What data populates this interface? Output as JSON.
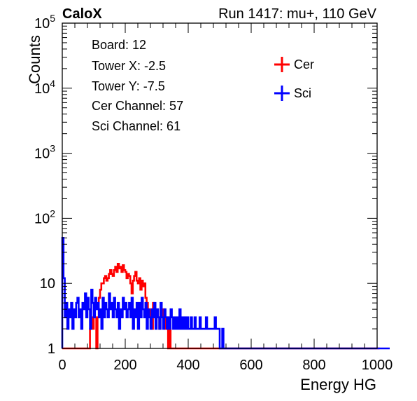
{
  "header": {
    "left_label": "CaloX",
    "right_label": "Run 1417: mu+, 110 GeV"
  },
  "info_box": {
    "lines": [
      "Board: 12",
      "Tower X: -2.5",
      "Tower Y: -7.5",
      "Cer Channel: 57",
      "Sci Channel: 61"
    ]
  },
  "chart_data": {
    "type": "histogram",
    "xlabel": "Energy HG",
    "ylabel": "Counts",
    "xlim": [
      0,
      1000
    ],
    "ylim": [
      1,
      100000
    ],
    "y_scale": "log",
    "x_ticks": [
      "0",
      "200",
      "400",
      "600",
      "800",
      "1000"
    ],
    "y_ticks": [
      {
        "base": "1",
        "exp": "",
        "value": 1
      },
      {
        "base": "10",
        "exp": "",
        "value": 10
      },
      {
        "base": "10",
        "exp": "2",
        "value": 100
      },
      {
        "base": "10",
        "exp": "3",
        "value": 1000
      },
      {
        "base": "10",
        "exp": "4",
        "value": 10000
      },
      {
        "base": "10",
        "exp": "5",
        "value": 100000
      }
    ],
    "legend_position": "top-right",
    "bin_width": 4,
    "series": [
      {
        "name": "Cer",
        "color": "#ff0000",
        "x_start": 0,
        "counts": [
          1,
          1,
          1,
          1,
          1,
          1,
          1,
          1,
          1,
          1,
          1,
          1,
          1,
          1,
          1,
          1,
          1,
          1,
          1,
          1,
          1,
          1,
          2,
          3,
          2,
          3,
          3,
          1,
          3,
          6,
          8,
          10,
          10,
          12,
          13,
          11,
          12,
          14,
          16,
          14,
          13,
          16,
          18,
          15,
          20,
          17,
          18,
          15,
          19,
          16,
          15,
          12,
          14,
          13,
          10,
          7,
          11,
          13,
          15,
          11,
          10,
          12,
          8,
          11,
          9,
          10,
          6,
          5,
          4,
          3,
          4,
          2,
          5,
          4,
          3,
          4,
          3,
          2,
          4,
          3,
          4,
          3,
          2,
          3,
          1,
          2,
          1,
          1,
          1,
          1,
          1,
          1,
          1,
          1,
          1,
          1,
          1,
          1,
          1,
          1,
          1,
          1,
          1,
          1,
          1,
          1,
          1,
          1,
          1,
          1,
          1,
          1,
          1,
          1,
          1,
          1,
          1,
          1,
          1,
          1,
          1,
          1,
          1,
          1,
          1,
          1,
          1,
          1,
          1,
          1,
          1,
          1,
          1,
          1,
          1,
          1,
          1,
          1,
          1,
          1,
          1,
          1,
          1,
          1,
          1,
          1,
          1,
          1,
          1,
          1,
          1,
          1,
          1,
          1,
          1,
          1,
          1,
          1,
          1,
          1,
          1,
          1,
          1,
          1,
          1,
          1,
          1,
          1,
          1,
          1,
          1,
          1,
          1,
          1,
          1,
          1,
          1,
          1,
          1,
          1,
          1,
          1,
          1,
          1,
          1,
          1,
          1,
          1,
          1,
          1,
          1,
          1,
          1,
          1,
          1,
          1,
          1,
          1,
          1,
          1,
          1,
          1,
          1,
          1,
          1,
          1,
          1,
          1,
          1,
          1,
          1,
          1,
          1,
          1,
          1,
          1,
          1,
          1,
          1,
          1,
          1,
          1,
          1,
          1,
          1,
          1,
          1,
          1,
          1,
          1,
          1,
          1,
          1,
          1,
          1,
          1,
          1,
          1,
          1,
          1,
          1,
          1,
          1,
          1,
          1,
          1,
          1,
          1,
          1,
          1,
          1,
          1
        ]
      },
      {
        "name": "Sci",
        "color": "#0000ff",
        "x_start": 0,
        "counts": [
          50,
          12,
          3,
          5,
          2,
          4,
          3,
          5,
          2,
          4,
          3,
          5,
          6,
          3,
          4,
          2,
          5,
          4,
          7,
          3,
          6,
          4,
          2,
          8,
          5,
          3,
          6,
          4,
          5,
          3,
          4,
          2,
          6,
          3,
          5,
          4,
          3,
          7,
          4,
          5,
          3,
          6,
          4,
          3,
          5,
          2,
          4,
          3,
          6,
          4,
          5,
          3,
          4,
          5,
          3,
          6,
          2,
          4,
          3,
          5,
          2,
          5,
          3,
          6,
          4,
          3,
          5,
          2,
          4,
          3,
          2,
          4,
          3,
          5,
          2,
          4,
          3,
          2,
          5,
          3,
          2,
          4,
          3,
          2,
          3,
          2,
          4,
          3,
          2,
          3,
          2,
          3,
          2,
          4,
          2,
          3,
          2,
          3,
          2,
          3,
          2,
          2,
          3,
          2,
          2,
          3,
          2,
          2,
          2,
          3,
          2,
          2,
          2,
          2,
          3,
          2,
          2,
          2,
          2,
          2,
          2,
          3,
          2,
          2,
          2,
          1,
          1,
          2,
          1,
          1,
          1,
          1,
          1,
          1,
          1,
          1,
          1,
          1,
          1,
          1,
          1,
          1,
          1,
          1,
          1,
          1,
          1,
          1,
          1,
          1,
          1,
          1,
          1,
          1,
          1,
          1,
          1,
          1,
          1,
          1,
          1,
          1,
          1,
          1,
          1,
          1,
          1,
          1,
          1,
          1,
          1,
          1,
          1,
          1,
          1,
          1,
          1,
          1,
          1,
          1,
          1,
          1,
          1,
          1,
          1,
          1,
          1,
          1,
          1,
          1,
          1,
          1,
          1,
          1,
          1,
          1,
          1,
          1,
          1,
          1,
          1,
          1,
          1,
          1,
          1,
          1,
          1,
          1,
          1,
          1,
          1,
          1,
          1,
          1,
          1,
          1,
          1,
          1,
          1,
          1,
          1,
          1,
          1,
          1,
          1,
          1,
          1,
          1,
          1,
          1,
          1,
          1,
          1,
          1,
          1,
          1,
          1,
          1,
          1,
          1,
          1,
          1,
          1,
          1,
          1,
          1,
          1,
          1,
          1,
          1,
          1,
          1,
          1,
          1,
          1,
          1,
          1,
          1,
          1,
          1
        ]
      }
    ]
  }
}
